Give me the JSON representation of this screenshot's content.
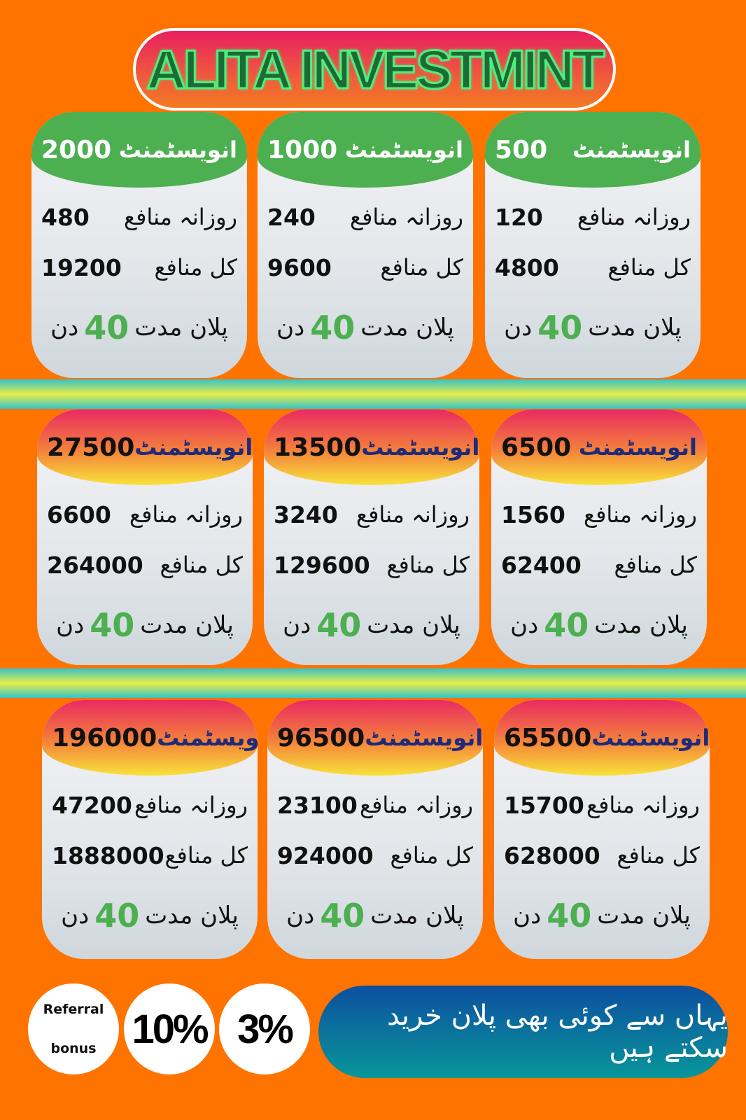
{
  "title": "ALITA INVESTMINT",
  "labels": {
    "investment": "انویسٹمنٹ",
    "daily_profit": "روزانہ منافع",
    "total_profit": "کل منافع",
    "plan_duration": "پلان مدت",
    "days_unit": "دن"
  },
  "rows": [
    {
      "header_style": "green",
      "cards": [
        {
          "investment": "2000",
          "daily": "480",
          "total": "19200",
          "days": "40"
        },
        {
          "investment": "1000",
          "daily": "240",
          "total": "9600",
          "days": "40"
        },
        {
          "investment": "500",
          "daily": "120",
          "total": "4800",
          "days": "40"
        }
      ]
    },
    {
      "header_style": "warm",
      "cards": [
        {
          "investment": "27500",
          "daily": "6600",
          "total": "264000",
          "days": "40"
        },
        {
          "investment": "13500",
          "daily": "3240",
          "total": "129600",
          "days": "40"
        },
        {
          "investment": "6500",
          "daily": "1560",
          "total": "62400",
          "days": "40"
        }
      ]
    },
    {
      "header_style": "warm",
      "cards": [
        {
          "investment": "196000",
          "daily": "47200",
          "total": "1888000",
          "days": "40"
        },
        {
          "investment": "96500",
          "daily": "23100",
          "total": "924000",
          "days": "40"
        },
        {
          "investment": "65500",
          "daily": "15700",
          "total": "628000",
          "days": "40"
        }
      ]
    }
  ],
  "referral": {
    "label_line1": "Referral",
    "label_line2": "bonus",
    "level1": "10%",
    "level2": "3%"
  },
  "cta": "یہاں سے کوئی بھی پلان خرید سکتے ہیں",
  "colors": {
    "background": "#ff7300",
    "green": "#4caf50",
    "cta_top": "#0d4fa0",
    "cta_bottom": "#08969a"
  }
}
